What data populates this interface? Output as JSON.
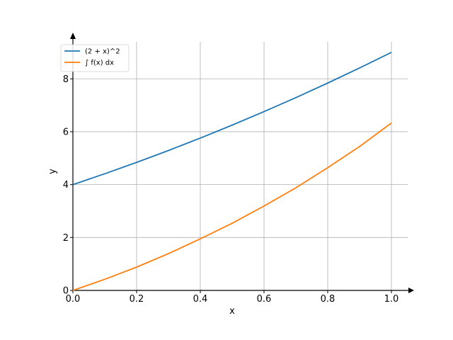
{
  "chart_data": {
    "type": "line",
    "title": "",
    "xlabel": "x",
    "ylabel": "y",
    "xlim": [
      0,
      1.0
    ],
    "ylim": [
      0,
      9.4
    ],
    "grid": true,
    "legend_position": "top-left",
    "x_ticks": [
      "0.0",
      "0.2",
      "0.4",
      "0.6",
      "0.8",
      "1.0"
    ],
    "x_tick_values": [
      0,
      0.2,
      0.4,
      0.6,
      0.8,
      1.0
    ],
    "y_ticks": [
      "0",
      "2",
      "4",
      "6",
      "8"
    ],
    "y_tick_values": [
      0,
      2,
      4,
      6,
      8
    ],
    "series": [
      {
        "name": "(2 + x)^2",
        "color": "#1f77b4",
        "x": [
          0,
          0.1,
          0.2,
          0.3,
          0.4,
          0.5,
          0.6,
          0.7,
          0.8,
          0.9,
          1.0
        ],
        "y": [
          4,
          4.41,
          4.84,
          5.29,
          5.76,
          6.25,
          6.76,
          7.29,
          7.84,
          8.41,
          9
        ]
      },
      {
        "name": "∫ f(x) dx",
        "color": "#ff7f0e",
        "x": [
          0,
          0.1,
          0.2,
          0.3,
          0.4,
          0.5,
          0.6,
          0.7,
          0.8,
          0.9,
          1.0
        ],
        "y": [
          0,
          0.42,
          0.88,
          1.39,
          1.95,
          2.54,
          3.19,
          3.88,
          4.64,
          5.44,
          6.33
        ]
      }
    ]
  }
}
